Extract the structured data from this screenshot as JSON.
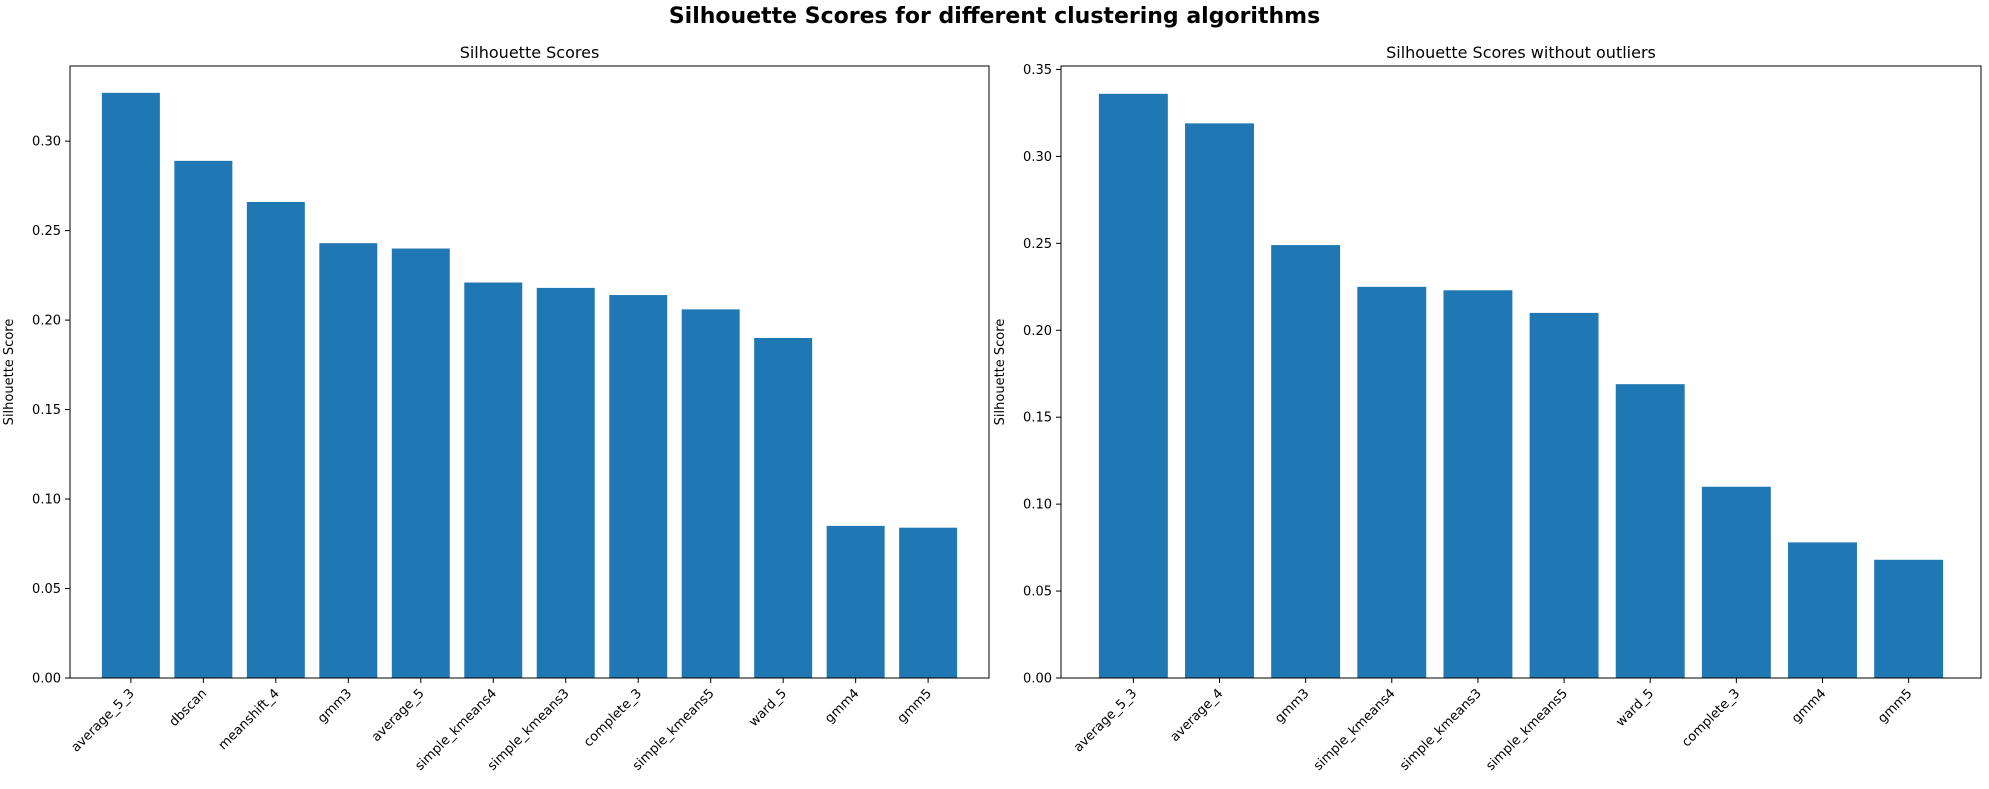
{
  "figure": {
    "title": "Silhouette Scores for different clustering algorithms"
  },
  "colors": {
    "bar": "#1f77b4",
    "axis": "#000000",
    "text": "#000000"
  },
  "chart_data": [
    {
      "type": "bar",
      "title": "Silhouette Scores",
      "xlabel": "",
      "ylabel": "Silhouette Score",
      "ylim": [
        0,
        0.342
      ],
      "yticks": [
        "0.00",
        "0.05",
        "0.10",
        "0.15",
        "0.20",
        "0.25",
        "0.30"
      ],
      "grid": false,
      "categories": [
        "average_5_3",
        "dbscan",
        "meanshift_4",
        "gmm3",
        "average_5",
        "simple_kmeans4",
        "simple_kmeans3",
        "complete_3",
        "simple_kmeans5",
        "ward_5",
        "gmm4",
        "gmm5"
      ],
      "values": [
        0.327,
        0.289,
        0.266,
        0.243,
        0.24,
        0.221,
        0.218,
        0.214,
        0.206,
        0.19,
        0.085,
        0.084
      ]
    },
    {
      "type": "bar",
      "title": "Silhouette Scores without outliers",
      "xlabel": "",
      "ylabel": "Silhouette Score",
      "ylim": [
        0,
        0.352
      ],
      "yticks": [
        "0.00",
        "0.05",
        "0.10",
        "0.15",
        "0.20",
        "0.25",
        "0.30",
        "0.35"
      ],
      "grid": false,
      "categories": [
        "average_5_3",
        "average_4",
        "gmm3",
        "simple_kmeans4",
        "simple_kmeans3",
        "simple_kmeans5",
        "ward_5",
        "complete_3",
        "gmm4",
        "gmm5"
      ],
      "values": [
        0.336,
        0.319,
        0.249,
        0.225,
        0.223,
        0.21,
        0.169,
        0.11,
        0.078,
        0.068
      ]
    }
  ]
}
